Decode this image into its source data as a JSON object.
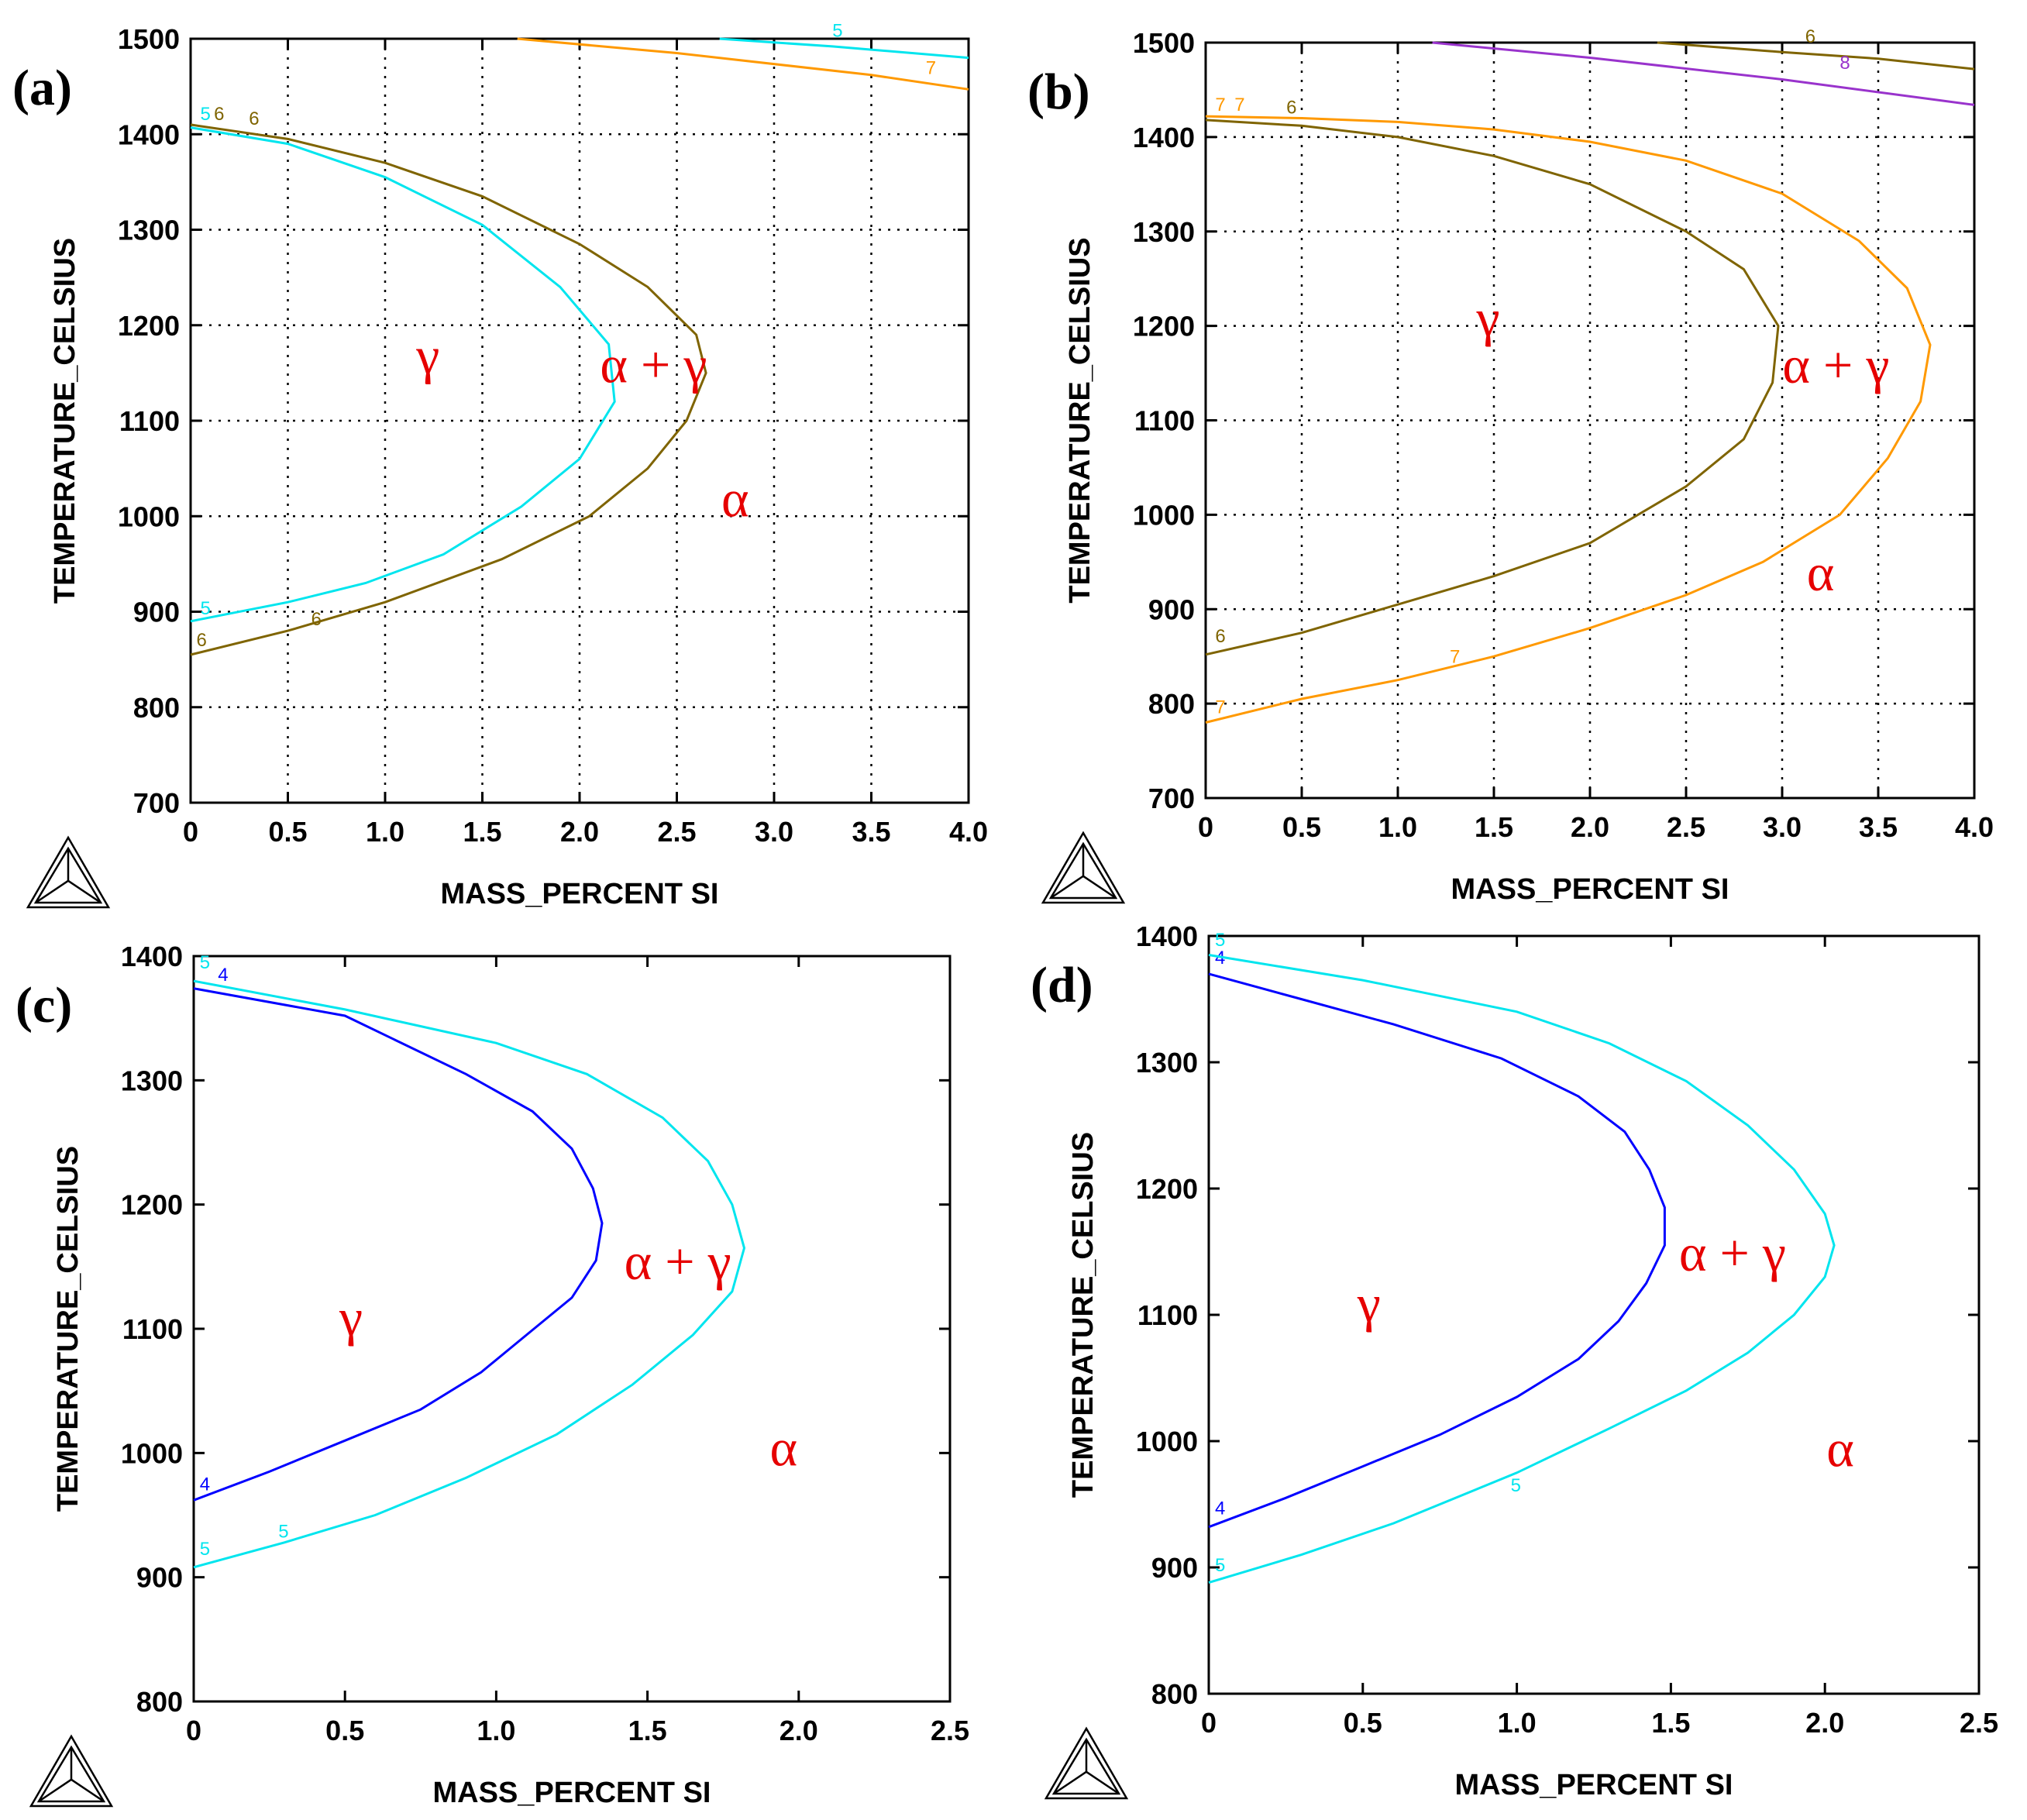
{
  "chart_data": [
    {
      "panel": "(a)",
      "type": "line",
      "xlabel": "MASS_PERCENT SI",
      "ylabel": "TEMPERATURE_CELSIUS",
      "xlim": [
        0,
        4.0
      ],
      "ylim": [
        700,
        1500
      ],
      "x_ticks": [
        "0",
        "0.5",
        "1.0",
        "1.5",
        "2.0",
        "2.5",
        "3.0",
        "3.5",
        "4.0"
      ],
      "y_ticks": [
        "700",
        "800",
        "900",
        "1000",
        "1100",
        "1200",
        "1300",
        "1400",
        "1500"
      ],
      "grid": true,
      "series": [
        {
          "label_num": "5",
          "color": "#00e5ee",
          "points": [
            [
              0,
              1407
            ],
            [
              0.5,
              1390
            ],
            [
              1.0,
              1355
            ],
            [
              1.5,
              1305
            ],
            [
              1.9,
              1240
            ],
            [
              2.15,
              1180
            ],
            [
              2.18,
              1120
            ],
            [
              2.0,
              1060
            ],
            [
              1.7,
              1010
            ],
            [
              1.3,
              960
            ],
            [
              0.9,
              930
            ],
            [
              0.5,
              910
            ],
            [
              0,
              890
            ]
          ],
          "labels": [
            {
              "x": 0.05,
              "y": 1415,
              "text": "5"
            },
            {
              "x": 0.05,
              "y": 897,
              "text": "5"
            }
          ]
        },
        {
          "label_num": "6",
          "color": "#7f6400",
          "points": [
            [
              0,
              1410
            ],
            [
              0.5,
              1395
            ],
            [
              1.0,
              1370
            ],
            [
              1.5,
              1335
            ],
            [
              2.0,
              1285
            ],
            [
              2.35,
              1240
            ],
            [
              2.6,
              1190
            ],
            [
              2.65,
              1150
            ],
            [
              2.55,
              1100
            ],
            [
              2.35,
              1050
            ],
            [
              2.05,
              1000
            ],
            [
              1.6,
              955
            ],
            [
              1.0,
              910
            ],
            [
              0.5,
              880
            ],
            [
              0,
              855
            ]
          ],
          "labels": [
            {
              "x": 0.12,
              "y": 1415,
              "text": "6"
            },
            {
              "x": 0.3,
              "y": 1410,
              "text": "6"
            },
            {
              "x": 0.62,
              "y": 886,
              "text": "6"
            },
            {
              "x": 0.03,
              "y": 864,
              "text": "6"
            }
          ]
        },
        {
          "label_num": "5",
          "color": "#00e5ee",
          "points": [
            [
              2.72,
              1500
            ],
            [
              3.3,
              1492
            ],
            [
              4.0,
              1480
            ]
          ],
          "labels": [
            {
              "x": 3.3,
              "y": 1502,
              "text": "5"
            }
          ]
        },
        {
          "label_num": "7",
          "color": "#ff9900",
          "points": [
            [
              1.68,
              1500
            ],
            [
              2.5,
              1485
            ],
            [
              3.5,
              1462
            ],
            [
              4.0,
              1447
            ]
          ],
          "labels": [
            {
              "x": 3.78,
              "y": 1463,
              "text": "7"
            }
          ]
        }
      ],
      "regions": [
        {
          "text": "γ",
          "x": 1.22,
          "y": 1150
        },
        {
          "text": "α + γ",
          "x": 2.38,
          "y": 1140
        },
        {
          "text": "α",
          "x": 2.8,
          "y": 1000
        }
      ]
    },
    {
      "panel": "(b)",
      "type": "line",
      "xlabel": "MASS_PERCENT SI",
      "ylabel": "TEMPERATURE_CELSIUS",
      "xlim": [
        0,
        4.0
      ],
      "ylim": [
        700,
        1500
      ],
      "x_ticks": [
        "0",
        "0.5",
        "1.0",
        "1.5",
        "2.0",
        "2.5",
        "3.0",
        "3.5",
        "4.0"
      ],
      "y_ticks": [
        "700",
        "800",
        "900",
        "1000",
        "1100",
        "1200",
        "1300",
        "1400",
        "1500"
      ],
      "grid": true,
      "series": [
        {
          "label_num": "6",
          "color": "#7f6400",
          "points": [
            [
              0,
              1418
            ],
            [
              0.5,
              1412
            ],
            [
              1.0,
              1400
            ],
            [
              1.5,
              1380
            ],
            [
              2.0,
              1350
            ],
            [
              2.5,
              1300
            ],
            [
              2.8,
              1260
            ],
            [
              2.98,
              1200
            ],
            [
              2.95,
              1140
            ],
            [
              2.8,
              1080
            ],
            [
              2.5,
              1030
            ],
            [
              2.0,
              970
            ],
            [
              1.5,
              935
            ],
            [
              1.0,
              905
            ],
            [
              0.5,
              875
            ],
            [
              0,
              852
            ]
          ],
          "labels": [
            {
              "x": 0.05,
              "y": 865,
              "text": "6"
            },
            {
              "x": 0.42,
              "y": 1425,
              "text": "6"
            }
          ]
        },
        {
          "label_num": "7",
          "color": "#ff9900",
          "points": [
            [
              0,
              1422
            ],
            [
              0.5,
              1420
            ],
            [
              1.0,
              1416
            ],
            [
              1.5,
              1408
            ],
            [
              2.0,
              1395
            ],
            [
              2.5,
              1375
            ],
            [
              3.0,
              1340
            ],
            [
              3.4,
              1290
            ],
            [
              3.65,
              1240
            ],
            [
              3.77,
              1180
            ],
            [
              3.72,
              1120
            ],
            [
              3.55,
              1060
            ],
            [
              3.3,
              1000
            ],
            [
              2.9,
              950
            ],
            [
              2.5,
              915
            ],
            [
              2.0,
              880
            ],
            [
              1.5,
              850
            ],
            [
              1.0,
              825
            ],
            [
              0.5,
              805
            ],
            [
              0,
              780
            ]
          ],
          "labels": [
            {
              "x": 0.05,
              "y": 1428,
              "text": "7"
            },
            {
              "x": 0.15,
              "y": 1428,
              "text": "7"
            },
            {
              "x": 1.27,
              "y": 843,
              "text": "7"
            },
            {
              "x": 0.05,
              "y": 790,
              "text": "7"
            }
          ]
        },
        {
          "label_num": "6",
          "color": "#7f6400",
          "points": [
            [
              2.35,
              1500
            ],
            [
              3.0,
              1490
            ],
            [
              3.5,
              1483
            ],
            [
              4.0,
              1472
            ]
          ],
          "labels": [
            {
              "x": 3.12,
              "y": 1500,
              "text": "6"
            }
          ]
        },
        {
          "label_num": "8",
          "color": "#9933cc",
          "points": [
            [
              1.18,
              1500
            ],
            [
              2.0,
              1484
            ],
            [
              3.0,
              1461
            ],
            [
              4.0,
              1434
            ]
          ],
          "labels": [
            {
              "x": 3.3,
              "y": 1472,
              "text": "8"
            }
          ]
        }
      ],
      "regions": [
        {
          "text": "γ",
          "x": 1.47,
          "y": 1190
        },
        {
          "text": "α + γ",
          "x": 3.28,
          "y": 1140
        },
        {
          "text": "α",
          "x": 3.2,
          "y": 920
        }
      ]
    },
    {
      "panel": "(c)",
      "type": "line",
      "xlabel": "MASS_PERCENT SI",
      "ylabel": "TEMPERATURE_CELSIUS",
      "xlim": [
        0,
        2.5
      ],
      "ylim": [
        800,
        1400
      ],
      "x_ticks": [
        "0",
        "0.5",
        "1.0",
        "1.5",
        "2.0",
        "2.5"
      ],
      "y_ticks": [
        "800",
        "900",
        "1000",
        "1100",
        "1200",
        "1300",
        "1400"
      ],
      "grid": false,
      "series": [
        {
          "label_num": "4",
          "color": "#0000ff",
          "points": [
            [
              0,
              1374
            ],
            [
              0.5,
              1352
            ],
            [
              0.9,
              1305
            ],
            [
              1.12,
              1275
            ],
            [
              1.25,
              1245
            ],
            [
              1.32,
              1213
            ],
            [
              1.35,
              1185
            ],
            [
              1.33,
              1155
            ],
            [
              1.25,
              1125
            ],
            [
              1.1,
              1095
            ],
            [
              0.95,
              1065
            ],
            [
              0.75,
              1035
            ],
            [
              0.5,
              1010
            ],
            [
              0.25,
              985
            ],
            [
              0,
              962
            ]
          ],
          "labels": [
            {
              "x": 0.08,
              "y": 1380,
              "text": "4"
            },
            {
              "x": 0.02,
              "y": 970,
              "text": "4"
            }
          ]
        },
        {
          "label_num": "5",
          "color": "#00e5ee",
          "points": [
            [
              0,
              1380
            ],
            [
              0.5,
              1357
            ],
            [
              1.0,
              1330
            ],
            [
              1.3,
              1305
            ],
            [
              1.55,
              1270
            ],
            [
              1.7,
              1235
            ],
            [
              1.78,
              1200
            ],
            [
              1.82,
              1165
            ],
            [
              1.78,
              1130
            ],
            [
              1.65,
              1095
            ],
            [
              1.45,
              1055
            ],
            [
              1.2,
              1015
            ],
            [
              0.9,
              980
            ],
            [
              0.6,
              950
            ],
            [
              0.3,
              928
            ],
            [
              0,
              908
            ]
          ],
          "labels": [
            {
              "x": 0.02,
              "y": 1390,
              "text": "5"
            },
            {
              "x": 0.02,
              "y": 918,
              "text": "5"
            },
            {
              "x": 0.28,
              "y": 932,
              "text": "5"
            }
          ]
        }
      ],
      "regions": [
        {
          "text": "γ",
          "x": 0.52,
          "y": 1095
        },
        {
          "text": "α + γ",
          "x": 1.6,
          "y": 1140
        },
        {
          "text": "α",
          "x": 1.95,
          "y": 990
        }
      ]
    },
    {
      "panel": "(d)",
      "type": "line",
      "xlabel": "MASS_PERCENT SI",
      "ylabel": "TEMPERATURE_CELSIUS",
      "xlim": [
        0,
        2.5
      ],
      "ylim": [
        800,
        1400
      ],
      "x_ticks": [
        "0",
        "0.5",
        "1.0",
        "1.5",
        "2.0",
        "2.5"
      ],
      "y_ticks": [
        "800",
        "900",
        "1000",
        "1100",
        "1200",
        "1300",
        "1400"
      ],
      "grid": false,
      "series": [
        {
          "label_num": "4",
          "color": "#0000ff",
          "points": [
            [
              0,
              1370
            ],
            [
              0.3,
              1350
            ],
            [
              0.6,
              1330
            ],
            [
              0.95,
              1303
            ],
            [
              1.2,
              1273
            ],
            [
              1.35,
              1245
            ],
            [
              1.43,
              1215
            ],
            [
              1.48,
              1185
            ],
            [
              1.48,
              1155
            ],
            [
              1.42,
              1125
            ],
            [
              1.33,
              1095
            ],
            [
              1.2,
              1065
            ],
            [
              1.0,
              1035
            ],
            [
              0.75,
              1005
            ],
            [
              0.5,
              980
            ],
            [
              0.25,
              955
            ],
            [
              0,
              932
            ]
          ],
          "labels": [
            {
              "x": 0.02,
              "y": 1378,
              "text": "4"
            },
            {
              "x": 0.02,
              "y": 942,
              "text": "4"
            }
          ]
        },
        {
          "label_num": "5",
          "color": "#00e5ee",
          "points": [
            [
              0,
              1385
            ],
            [
              0.5,
              1365
            ],
            [
              1.0,
              1340
            ],
            [
              1.3,
              1315
            ],
            [
              1.55,
              1285
            ],
            [
              1.75,
              1250
            ],
            [
              1.9,
              1215
            ],
            [
              2.0,
              1180
            ],
            [
              2.03,
              1155
            ],
            [
              2.0,
              1130
            ],
            [
              1.9,
              1100
            ],
            [
              1.75,
              1070
            ],
            [
              1.55,
              1040
            ],
            [
              1.3,
              1010
            ],
            [
              1.0,
              975
            ],
            [
              0.6,
              935
            ],
            [
              0.3,
              910
            ],
            [
              0,
              888
            ]
          ],
          "labels": [
            {
              "x": 0.02,
              "y": 1392,
              "text": "5"
            },
            {
              "x": 0.02,
              "y": 897,
              "text": "5"
            },
            {
              "x": 0.98,
              "y": 960,
              "text": "5"
            }
          ]
        }
      ],
      "regions": [
        {
          "text": "γ",
          "x": 0.52,
          "y": 1095
        },
        {
          "text": "α + γ",
          "x": 1.7,
          "y": 1135
        },
        {
          "text": "α",
          "x": 2.05,
          "y": 980
        }
      ]
    }
  ]
}
